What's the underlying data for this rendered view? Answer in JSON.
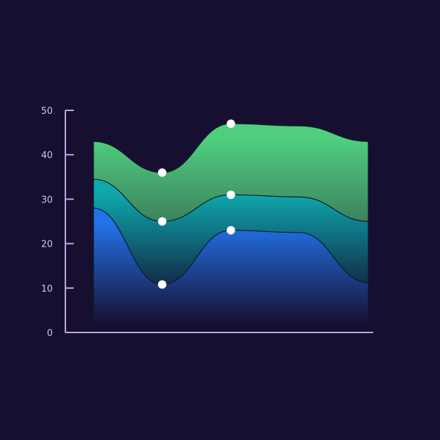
{
  "colors": {
    "background": "#170f2f",
    "axis": "#b9acdf",
    "tick_text": "#cfc6e8",
    "marker": "#ffffff",
    "series_top": [
      "#4fcf7e",
      "#2e4a46"
    ],
    "series_middle": [
      "#0fa8ad",
      "#102f4a"
    ],
    "series_bottom": [
      "#2273ea",
      "#170f2f"
    ]
  },
  "chart_data": {
    "type": "area",
    "stacked": true,
    "x": [
      0,
      1,
      2,
      3,
      4
    ],
    "ylim": [
      0,
      50
    ],
    "yticks": [
      0,
      10,
      20,
      30,
      40,
      50
    ],
    "grid": false,
    "legend": "none",
    "series": [
      {
        "key": "bottom",
        "cumulative": [
          28,
          10.8,
          23,
          22.5,
          11.2
        ],
        "markers": [
          1,
          2
        ]
      },
      {
        "key": "middle",
        "cumulative": [
          34.5,
          25,
          31,
          30.5,
          25
        ],
        "markers": [
          1,
          2
        ]
      },
      {
        "key": "top",
        "cumulative": [
          43,
          36,
          47,
          46.5,
          43
        ],
        "markers": [
          1,
          2
        ]
      }
    ]
  }
}
